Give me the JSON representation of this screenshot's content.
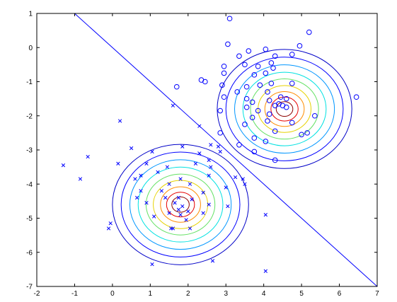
{
  "chart_data": {
    "type": "scatter",
    "title": "",
    "xlabel": "",
    "ylabel": "",
    "xlim": [
      -2,
      7
    ],
    "ylim": [
      -7,
      1
    ],
    "grid": false,
    "legend": "none",
    "x_ticks": [
      -2,
      -1,
      0,
      1,
      2,
      3,
      4,
      5,
      6,
      7
    ],
    "y_ticks": [
      -7,
      -6,
      -5,
      -4,
      -3,
      -2,
      -1,
      0,
      1
    ],
    "x_tick_labels": [
      "-2",
      "-1",
      "0",
      "1",
      "2",
      "3",
      "4",
      "5",
      "6",
      "7"
    ],
    "y_tick_labels": [
      "-7",
      "-6",
      "-5",
      "-4",
      "-3",
      "-2",
      "-1",
      "0",
      "1"
    ],
    "colors": {
      "points": "#0000ff",
      "boundary": "#0000ff",
      "contours": [
        "#0000c8",
        "#0000ff",
        "#0096ff",
        "#00e1e1",
        "#64e164",
        "#e6d200",
        "#ff8c00",
        "#e60000",
        "#8b0000"
      ]
    },
    "series": [
      {
        "marker": "circle",
        "points": [
          [
            3.1,
            0.85
          ],
          [
            5.2,
            0.45
          ],
          [
            4.95,
            0.05
          ],
          [
            3.05,
            0.1
          ],
          [
            3.6,
            -0.1
          ],
          [
            4.05,
            -0.05
          ],
          [
            4.3,
            -0.25
          ],
          [
            4.75,
            -0.2
          ],
          [
            3.35,
            -0.25
          ],
          [
            4.2,
            -0.45
          ],
          [
            2.95,
            -0.55
          ],
          [
            3.5,
            -0.5
          ],
          [
            3.85,
            -0.55
          ],
          [
            4.25,
            -0.6
          ],
          [
            2.95,
            -0.75
          ],
          [
            3.75,
            -0.8
          ],
          [
            4.05,
            -0.75
          ],
          [
            2.35,
            -0.95
          ],
          [
            2.45,
            -1.0
          ],
          [
            3.9,
            -1.1
          ],
          [
            4.2,
            -1.05
          ],
          [
            2.9,
            -1.1
          ],
          [
            3.55,
            -1.15
          ],
          [
            4.75,
            -1.05
          ],
          [
            1.7,
            -1.15
          ],
          [
            3.3,
            -1.3
          ],
          [
            4.1,
            -1.3
          ],
          [
            2.95,
            -1.45
          ],
          [
            3.55,
            -1.5
          ],
          [
            4.45,
            -1.45
          ],
          [
            4.6,
            -1.5
          ],
          [
            3.7,
            -1.6
          ],
          [
            4.15,
            -1.55
          ],
          [
            4.4,
            -1.65
          ],
          [
            4.5,
            -1.7
          ],
          [
            4.6,
            -1.75
          ],
          [
            4.3,
            -1.7
          ],
          [
            3.55,
            -1.75
          ],
          [
            2.85,
            -1.85
          ],
          [
            3.85,
            -1.85
          ],
          [
            6.45,
            -1.45
          ],
          [
            4.15,
            -1.95
          ],
          [
            3.7,
            -2.05
          ],
          [
            4.1,
            -2.15
          ],
          [
            4.75,
            -2.2
          ],
          [
            5.35,
            -2.0
          ],
          [
            3.5,
            -2.25
          ],
          [
            2.85,
            -2.5
          ],
          [
            4.3,
            -2.45
          ],
          [
            5.0,
            -2.55
          ],
          [
            5.15,
            -2.5
          ],
          [
            3.75,
            -2.65
          ],
          [
            4.05,
            -2.75
          ],
          [
            3.35,
            -2.85
          ],
          [
            3.75,
            -3.05
          ],
          [
            4.3,
            -3.3
          ]
        ]
      },
      {
        "marker": "x",
        "points": [
          [
            1.6,
            -1.7
          ],
          [
            0.2,
            -2.15
          ],
          [
            2.3,
            -2.3
          ],
          [
            2.6,
            -2.85
          ],
          [
            0.5,
            -2.95
          ],
          [
            2.8,
            -2.9
          ],
          [
            1.85,
            -2.9
          ],
          [
            -0.65,
            -3.2
          ],
          [
            1.05,
            -3.05
          ],
          [
            2.85,
            -3.05
          ],
          [
            2.3,
            -3.1
          ],
          [
            2.55,
            -3.3
          ],
          [
            -1.3,
            -3.45
          ],
          [
            0.15,
            -3.4
          ],
          [
            0.9,
            -3.4
          ],
          [
            2.2,
            -3.4
          ],
          [
            1.45,
            -3.5
          ],
          [
            2.6,
            -3.5
          ],
          [
            0.75,
            -3.75
          ],
          [
            1.2,
            -3.65
          ],
          [
            2.55,
            -3.75
          ],
          [
            -0.85,
            -3.85
          ],
          [
            0.6,
            -3.85
          ],
          [
            1.8,
            -3.85
          ],
          [
            3.25,
            -3.8
          ],
          [
            3.45,
            -3.85
          ],
          [
            1.5,
            -4.0
          ],
          [
            2.05,
            -4.0
          ],
          [
            3.5,
            -4.0
          ],
          [
            3.0,
            -4.1
          ],
          [
            0.75,
            -4.2
          ],
          [
            1.3,
            -4.2
          ],
          [
            0.65,
            -4.4
          ],
          [
            2.4,
            -4.25
          ],
          [
            1.4,
            -4.4
          ],
          [
            1.75,
            -4.4
          ],
          [
            0.9,
            -4.55
          ],
          [
            2.1,
            -4.45
          ],
          [
            1.65,
            -4.55
          ],
          [
            2.55,
            -4.6
          ],
          [
            1.85,
            -4.65
          ],
          [
            1.75,
            -4.75
          ],
          [
            3.05,
            -4.65
          ],
          [
            1.5,
            -4.85
          ],
          [
            2.0,
            -4.8
          ],
          [
            2.4,
            -4.85
          ],
          [
            1.1,
            -4.95
          ],
          [
            1.8,
            -4.9
          ],
          [
            1.95,
            -5.05
          ],
          [
            4.05,
            -4.9
          ],
          [
            -0.05,
            -5.15
          ],
          [
            -0.1,
            -5.3
          ],
          [
            1.55,
            -5.3
          ],
          [
            1.6,
            -5.3
          ],
          [
            2.05,
            -5.3
          ],
          [
            1.05,
            -6.35
          ],
          [
            2.65,
            -6.25
          ],
          [
            4.05,
            -6.55
          ]
        ]
      }
    ]
  }
}
